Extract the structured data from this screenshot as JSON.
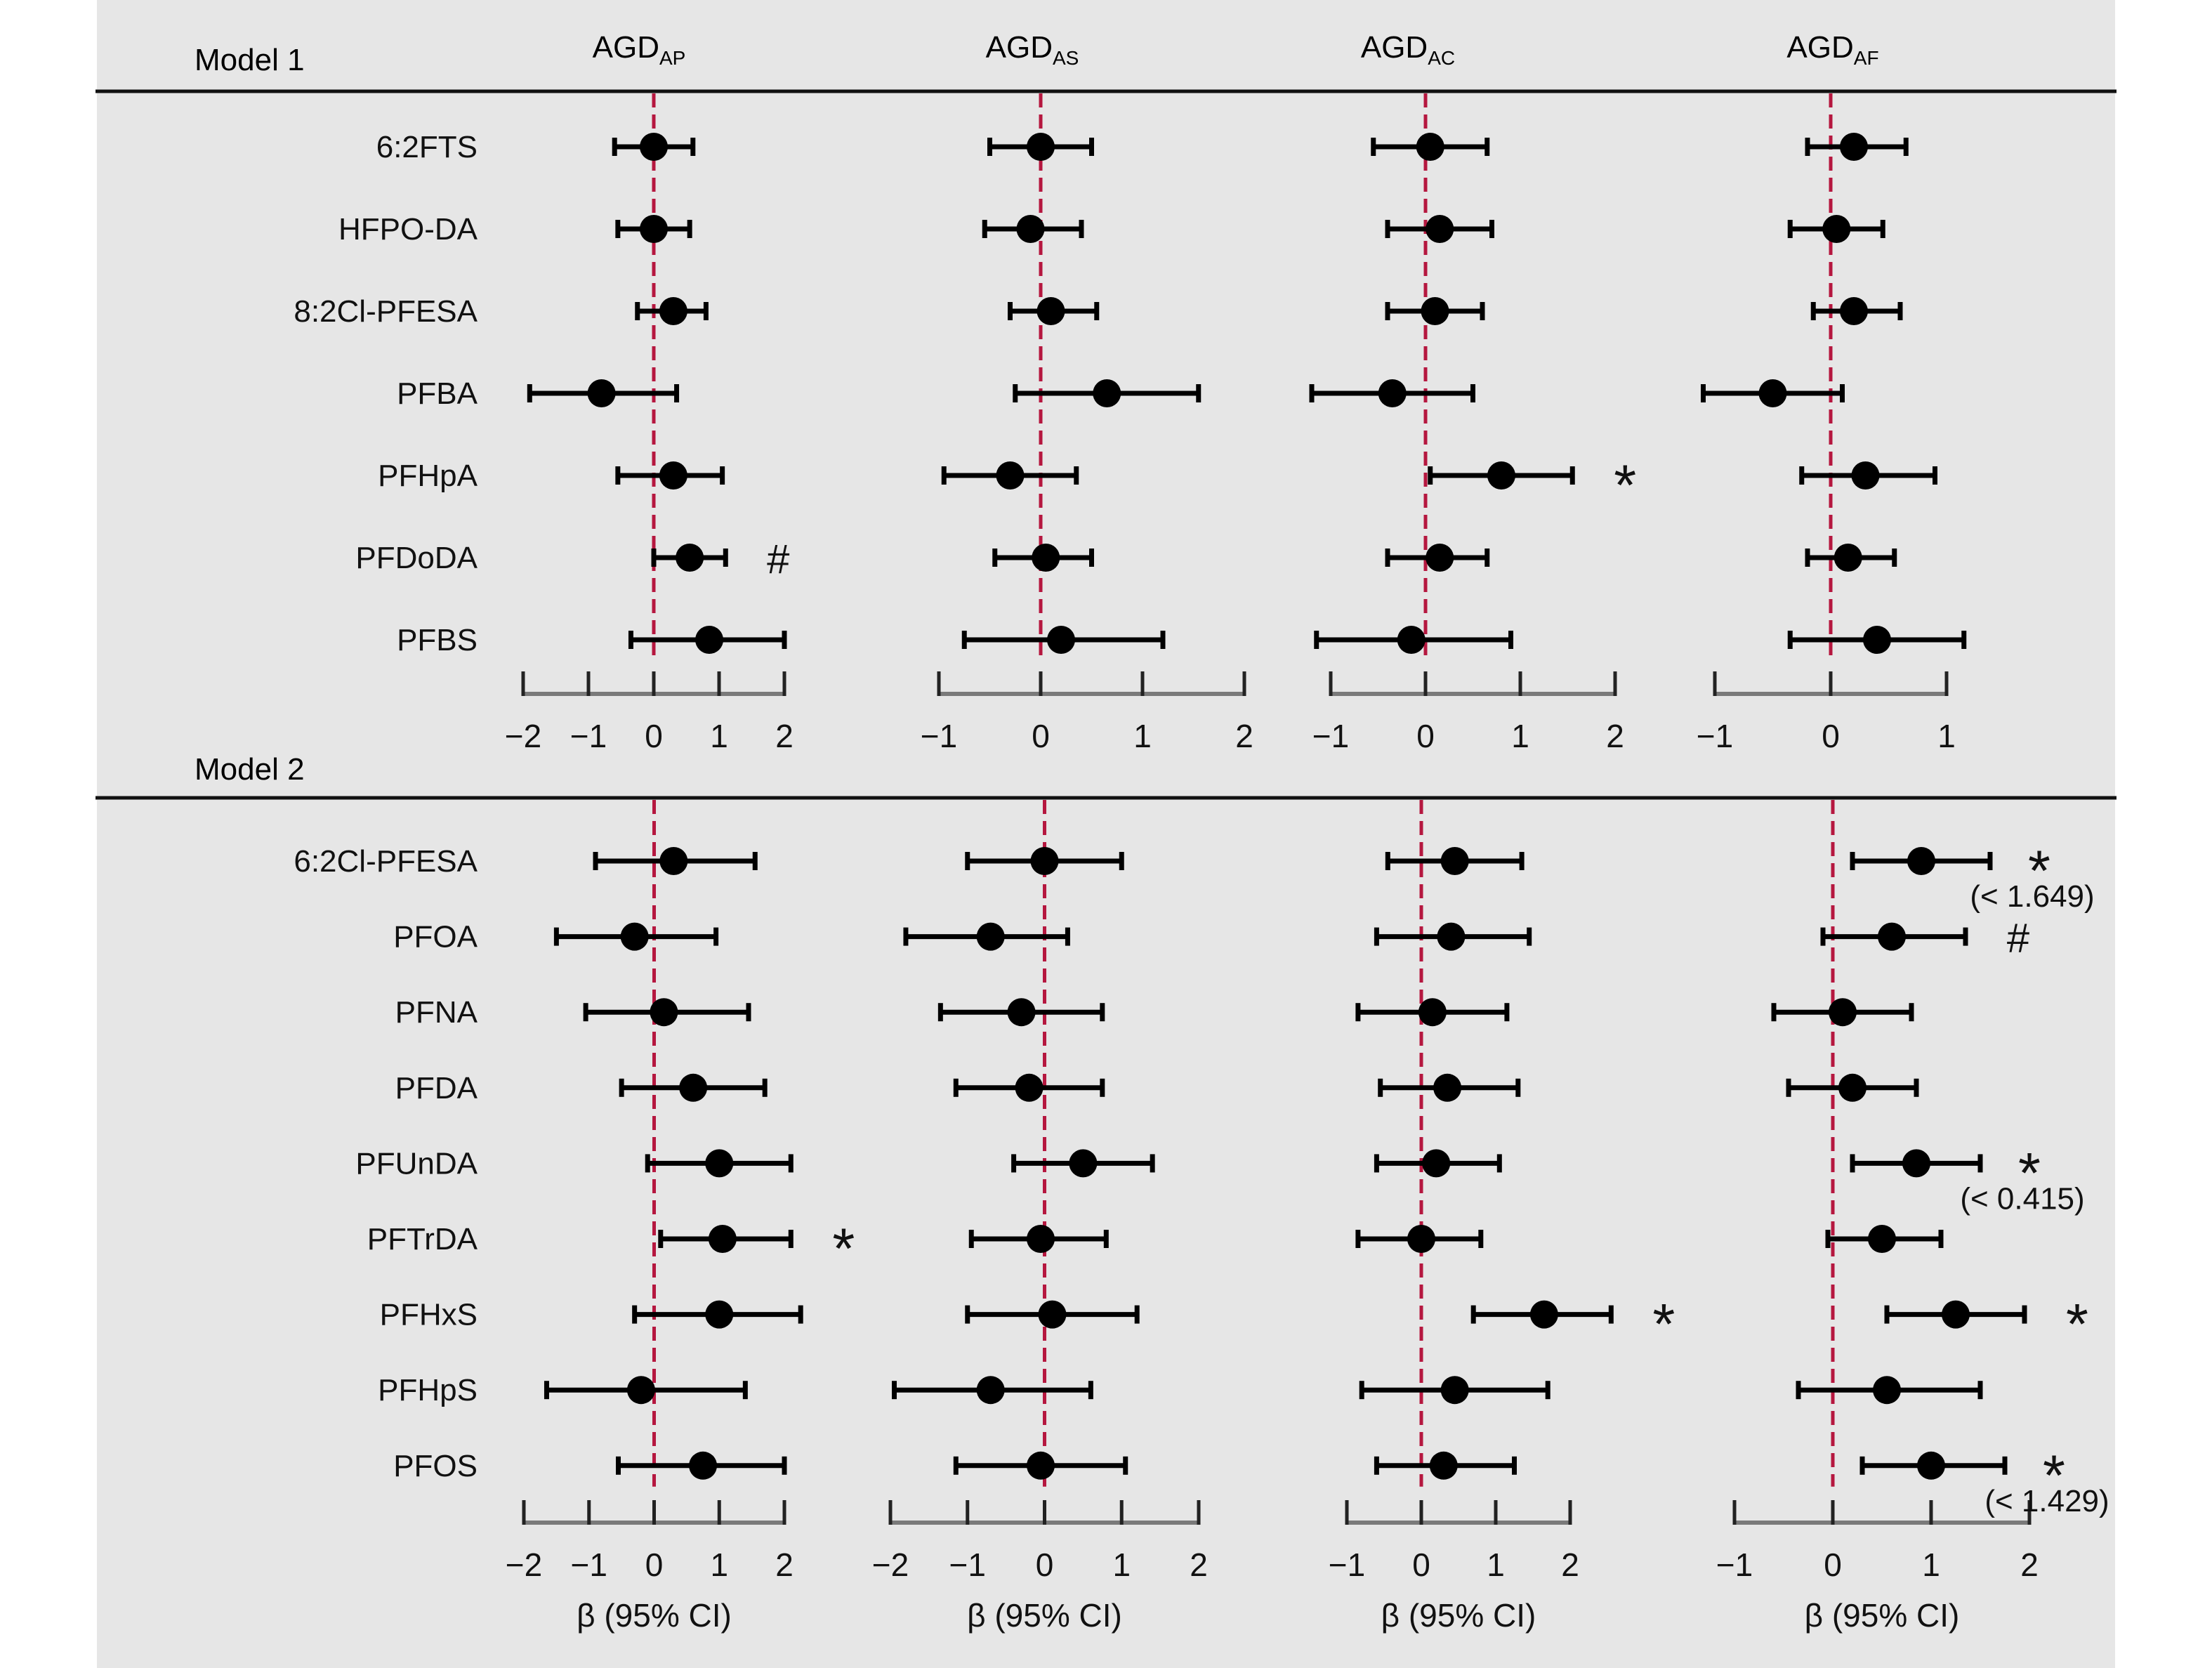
{
  "chart_data": {
    "type": "forest",
    "grid": false,
    "columns": [
      {
        "id": "AP",
        "header": "AGD",
        "header_sub": "AP"
      },
      {
        "id": "AS",
        "header": "AGD",
        "header_sub": "AS"
      },
      {
        "id": "AC",
        "header": "AGD",
        "header_sub": "AC"
      },
      {
        "id": "AF",
        "header": "AGD",
        "header_sub": "AF"
      }
    ],
    "xlabel": "β (95% CI)",
    "colors": {
      "reference_line": "#b5173f",
      "point": "#000000",
      "mark_red": "#c4153b",
      "mark_black": "#000000",
      "background": "#e6e6e6"
    },
    "panels": [
      {
        "title": "Model 1",
        "rows": [
          "6:2FTS",
          "HFPO-DA",
          "8:2Cl-PFESA",
          "PFBA",
          "PFHpA",
          "PFDoDA",
          "PFBS"
        ],
        "xlim": {
          "AP": [
            -2,
            2
          ],
          "AS": [
            -1,
            2
          ],
          "AC": [
            -1,
            2
          ],
          "AF": [
            -1,
            1
          ]
        },
        "ticks": {
          "AP": [
            "−2",
            "−1",
            "0",
            "1",
            "2"
          ],
          "AS": [
            "−1",
            "0",
            "1",
            "2"
          ],
          "AC": [
            "−1",
            "0",
            "1",
            "2"
          ],
          "AF": [
            "−1",
            "0",
            "1"
          ]
        },
        "data": {
          "AP": [
            [
              0.0,
              -0.6,
              0.6
            ],
            [
              0.0,
              -0.55,
              0.55
            ],
            [
              0.3,
              -0.25,
              0.8
            ],
            [
              -0.8,
              -1.9,
              0.35
            ],
            [
              0.3,
              -0.55,
              1.05
            ],
            [
              0.55,
              0.0,
              1.1
            ],
            [
              0.85,
              -0.35,
              2.0
            ]
          ],
          "AS": [
            [
              0.0,
              -0.5,
              0.5
            ],
            [
              -0.1,
              -0.55,
              0.4
            ],
            [
              0.1,
              -0.3,
              0.55
            ],
            [
              0.65,
              -0.25,
              1.55
            ],
            [
              -0.3,
              -0.95,
              0.35
            ],
            [
              0.05,
              -0.45,
              0.5
            ],
            [
              0.2,
              -0.75,
              1.2
            ]
          ],
          "AC": [
            [
              0.05,
              -0.55,
              0.65
            ],
            [
              0.15,
              -0.4,
              0.7
            ],
            [
              0.1,
              -0.4,
              0.6
            ],
            [
              -0.35,
              -1.2,
              0.5
            ],
            [
              0.8,
              0.05,
              1.55
            ],
            [
              0.15,
              -0.4,
              0.65
            ],
            [
              -0.15,
              -1.15,
              0.9
            ]
          ],
          "AF": [
            [
              0.2,
              -0.2,
              0.65
            ],
            [
              0.05,
              -0.35,
              0.45
            ],
            [
              0.2,
              -0.15,
              0.6
            ],
            [
              -0.5,
              -1.1,
              0.1
            ],
            [
              0.3,
              -0.25,
              0.9
            ],
            [
              0.15,
              -0.2,
              0.55
            ],
            [
              0.4,
              -0.35,
              1.15
            ]
          ]
        },
        "marks": [
          {
            "col": "AP",
            "row": 5,
            "symbol": "#",
            "color": "red"
          },
          {
            "col": "AC",
            "row": 4,
            "symbol": "*",
            "color": "red"
          }
        ]
      },
      {
        "title": "Model 2",
        "rows": [
          "6:2Cl-PFESA",
          "PFOA",
          "PFNA",
          "PFDA",
          "PFUnDA",
          "PFTrDA",
          "PFHxS",
          "PFHpS",
          "PFOS"
        ],
        "xlim": {
          "AP": [
            -2,
            2
          ],
          "AS": [
            -2,
            2
          ],
          "AC": [
            -1,
            2
          ],
          "AF": [
            -1,
            2
          ]
        },
        "ticks": {
          "AP": [
            "−2",
            "−1",
            "0",
            "1",
            "2"
          ],
          "AS": [
            "−2",
            "−1",
            "0",
            "1",
            "2"
          ],
          "AC": [
            "−1",
            "0",
            "1",
            "2"
          ],
          "AF": [
            "−1",
            "0",
            "1",
            "2"
          ]
        },
        "data": {
          "AP": [
            [
              0.3,
              -0.9,
              1.55
            ],
            [
              -0.3,
              -1.5,
              0.95
            ],
            [
              0.15,
              -1.05,
              1.45
            ],
            [
              0.6,
              -0.5,
              1.7
            ],
            [
              1.0,
              -0.1,
              2.1
            ],
            [
              1.05,
              0.1,
              2.1
            ],
            [
              1.0,
              -0.3,
              2.25
            ],
            [
              -0.2,
              -1.65,
              1.4
            ],
            [
              0.75,
              -0.55,
              2.0
            ]
          ],
          "AS": [
            [
              0.0,
              -1.0,
              1.0
            ],
            [
              -0.7,
              -1.8,
              0.3
            ],
            [
              -0.3,
              -1.35,
              0.75
            ],
            [
              -0.2,
              -1.15,
              0.75
            ],
            [
              0.5,
              -0.4,
              1.4
            ],
            [
              -0.05,
              -0.95,
              0.8
            ],
            [
              0.1,
              -1.0,
              1.2
            ],
            [
              -0.7,
              -1.95,
              0.6
            ],
            [
              -0.05,
              -1.15,
              1.05
            ]
          ],
          "AC": [
            [
              0.45,
              -0.45,
              1.35
            ],
            [
              0.4,
              -0.6,
              1.45
            ],
            [
              0.15,
              -0.85,
              1.15
            ],
            [
              0.35,
              -0.55,
              1.3
            ],
            [
              0.2,
              -0.6,
              1.05
            ],
            [
              0.0,
              -0.85,
              0.8
            ],
            [
              1.65,
              0.7,
              2.55
            ],
            [
              0.45,
              -0.8,
              1.7
            ],
            [
              0.3,
              -0.6,
              1.25
            ]
          ],
          "AF": [
            [
              0.9,
              0.2,
              1.6
            ],
            [
              0.6,
              -0.1,
              1.35
            ],
            [
              0.1,
              -0.6,
              0.8
            ],
            [
              0.2,
              -0.45,
              0.85
            ],
            [
              0.85,
              0.2,
              1.5
            ],
            [
              0.5,
              -0.05,
              1.1
            ],
            [
              1.25,
              0.55,
              1.95
            ],
            [
              0.55,
              -0.35,
              1.5
            ],
            [
              1.0,
              0.3,
              1.75
            ]
          ]
        },
        "marks": [
          {
            "col": "AP",
            "row": 5,
            "symbol": "*",
            "color": "red"
          },
          {
            "col": "AC",
            "row": 6,
            "symbol": "*",
            "color": "red"
          },
          {
            "col": "AF",
            "row": 0,
            "symbol": "*",
            "color": "black",
            "note": "(< 1.649)"
          },
          {
            "col": "AF",
            "row": 1,
            "symbol": "#",
            "color": "red"
          },
          {
            "col": "AF",
            "row": 4,
            "symbol": "*",
            "color": "black",
            "note": "(< 0.415)"
          },
          {
            "col": "AF",
            "row": 6,
            "symbol": "*",
            "color": "red"
          },
          {
            "col": "AF",
            "row": 8,
            "symbol": "*",
            "color": "black",
            "note": "(< 1.429)"
          }
        ]
      }
    ]
  }
}
